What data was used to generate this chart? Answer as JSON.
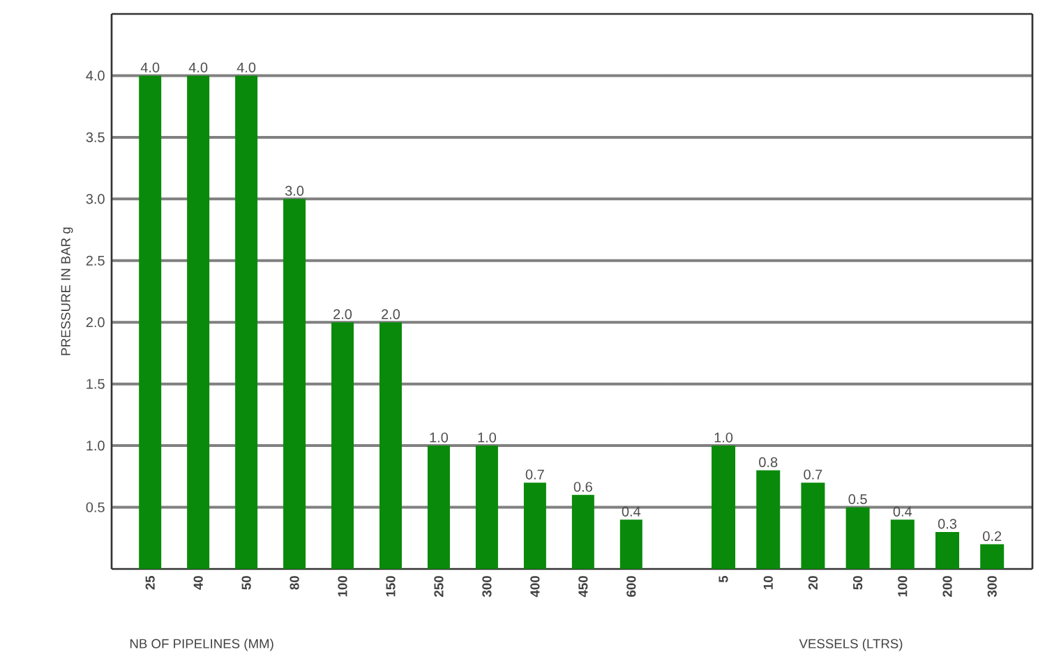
{
  "chart_data": [
    {
      "type": "bar",
      "ylabel": "PRESSURE IN BAR g",
      "xlabel": "NB OF PIPELINES (MM)",
      "categories": [
        "25",
        "40",
        "50",
        "80",
        "100",
        "150",
        "250",
        "300",
        "400",
        "450",
        "600"
      ],
      "values": [
        4.0,
        4.0,
        4.0,
        3.0,
        2.0,
        2.0,
        1.0,
        1.0,
        0.7,
        0.6,
        0.4
      ],
      "value_labels": [
        "4.0",
        "4.0",
        "4.0",
        "3.0",
        "2.0",
        "2.0",
        "1.0",
        "1.0",
        "0.7",
        "0.6",
        "0.4"
      ],
      "color": "#0a8a0a",
      "ylim": [
        0,
        4.5
      ],
      "yticks": [
        0.5,
        {
          "value": 1.0,
          "label": "1.0"
        },
        1.5,
        {
          "value": 2.0,
          "label": "2.0"
        },
        2.5,
        {
          "value": 3.0,
          "label": "3.0"
        },
        3.5,
        {
          "value": 4.0,
          "label": "4.0"
        }
      ],
      "grid": "y"
    },
    {
      "type": "bar",
      "xlabel": "VESSELS (LTRS)",
      "categories": [
        "5",
        "10",
        "20",
        "50",
        "100",
        "200",
        "300"
      ],
      "values": [
        1.0,
        0.8,
        0.7,
        0.5,
        0.4,
        0.3,
        0.2
      ],
      "value_labels": [
        "1.0",
        "0.8",
        "0.7",
        "0.5",
        "0.4",
        "0.3",
        "0.2"
      ],
      "color": "#0a8a0a",
      "ylim": [
        0,
        4.5
      ],
      "yticks": [
        0.5,
        1.0,
        1.5,
        2.0,
        2.5,
        3.0,
        3.5,
        4.0
      ],
      "grid": "y",
      "tick_labels": "x"
    }
  ]
}
